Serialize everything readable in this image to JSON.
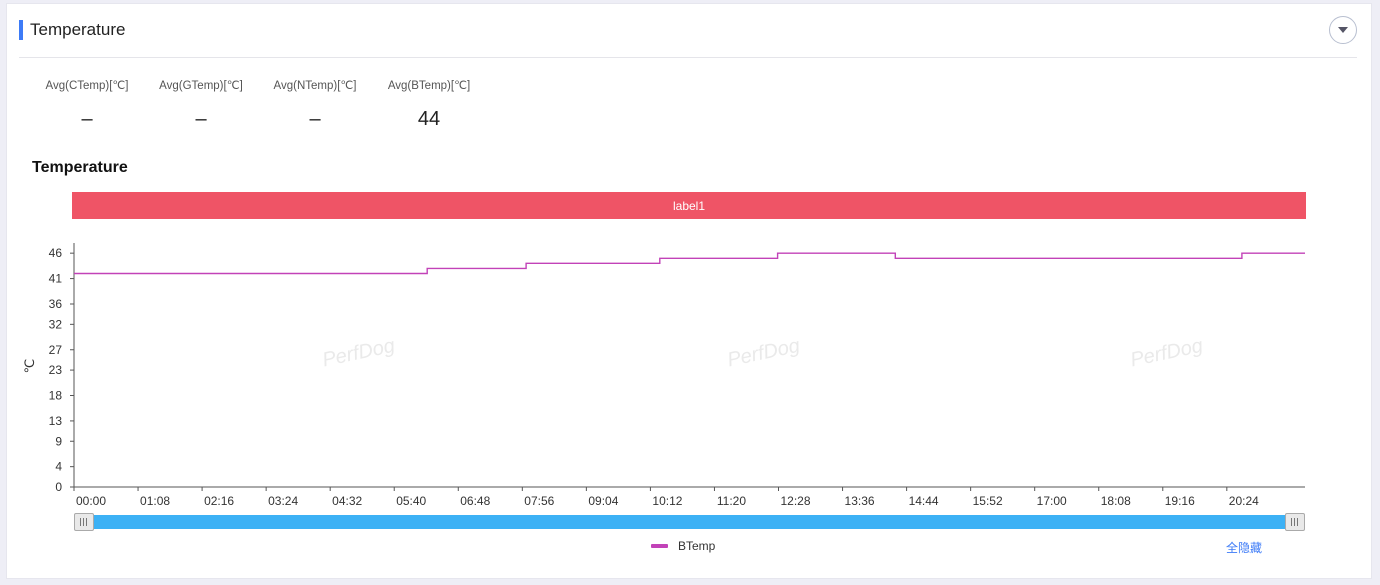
{
  "header": {
    "title": "Temperature"
  },
  "metrics": [
    {
      "label": "Avg(CTemp)[℃]",
      "value": "–"
    },
    {
      "label": "Avg(GTemp)[℃]",
      "value": "–"
    },
    {
      "label": "Avg(NTemp)[℃]",
      "value": "–"
    },
    {
      "label": "Avg(BTemp)[℃]",
      "value": "44"
    }
  ],
  "section_title": "Temperature",
  "label_band": "label1",
  "watermark": "PerfDog",
  "legend": {
    "series_name": "BTemp",
    "hide_all": "全隐藏"
  },
  "colors": {
    "accent": "#3d7bf7",
    "band": "#ef5466",
    "series": "#c242b8",
    "slider": "#3cb1f5"
  },
  "icons": {
    "collapse": "chevron-down-icon"
  },
  "chart_data": {
    "type": "line",
    "ylabel": "℃",
    "xlabel": "",
    "ylim": [
      0,
      48
    ],
    "yticks": [
      0,
      4,
      9,
      13,
      18,
      23,
      27,
      32,
      36,
      41,
      46
    ],
    "xlim": [
      "00:00",
      "21:47"
    ],
    "xticks": [
      "00:00",
      "01:08",
      "02:16",
      "03:24",
      "04:32",
      "05:40",
      "06:48",
      "07:56",
      "09:04",
      "10:12",
      "11:20",
      "12:28",
      "13:36",
      "14:44",
      "15:52",
      "17:00",
      "18:08",
      "19:16",
      "20:24"
    ],
    "series": [
      {
        "name": "BTemp",
        "x": [
          "00:00",
          "06:15",
          "06:15",
          "08:00",
          "08:00",
          "10:22",
          "10:22",
          "12:27",
          "12:27",
          "14:32",
          "14:32",
          "20:40",
          "20:40",
          "21:47"
        ],
        "values": [
          42,
          42,
          43,
          43,
          44,
          44,
          45,
          45,
          46,
          46,
          45,
          45,
          46,
          46
        ]
      }
    ]
  }
}
